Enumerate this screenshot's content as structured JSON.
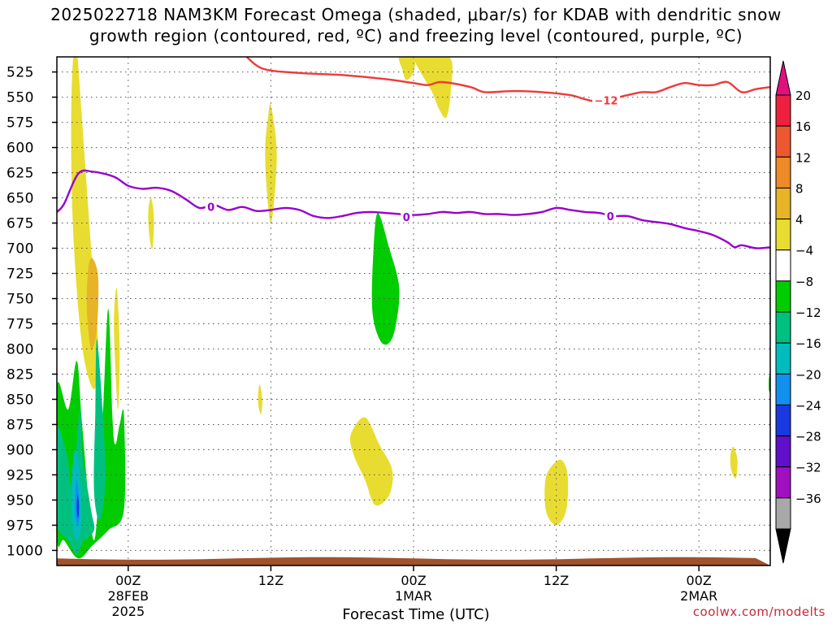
{
  "title_line1": "2025022718 NAM3KM Forecast Omega (shaded, μbar/s) for KDAB with dendritic snow",
  "title_line2": "growth region (contoured, red, ºC) and freezing level (contoured, purple, ºC)",
  "xlabel": "Forecast Time (UTC)",
  "credit": "coolwx.com/modelts",
  "chart_data": {
    "type": "time-height contour",
    "title": "2025022718 NAM3KM Forecast Omega (shaded, μbar/s) for KDAB with dendritic snow growth region (contoured, red, ºC) and freezing level (contoured, purple, ºC)",
    "xlabel": "Forecast Time (UTC)",
    "ylabel": "",
    "x_range_hours": [
      -5,
      45
    ],
    "y_range_hPa": [
      1015,
      510
    ],
    "y_ticks": [
      525,
      550,
      575,
      600,
      625,
      650,
      675,
      700,
      725,
      750,
      775,
      800,
      825,
      850,
      875,
      900,
      925,
      950,
      975,
      1000
    ],
    "x_ticks": [
      {
        "hour": 0,
        "lines": [
          "00Z",
          "28FEB",
          "2025"
        ]
      },
      {
        "hour": 10,
        "lines": [
          "12Z"
        ]
      },
      {
        "hour": 20,
        "lines": [
          "00Z",
          "1MAR"
        ]
      },
      {
        "hour": 30,
        "lines": [
          "12Z"
        ]
      },
      {
        "hour": 40,
        "lines": [
          "00Z",
          "2MAR"
        ]
      }
    ],
    "grid": true,
    "colorbar": {
      "labels": [
        "20",
        "16",
        "12",
        "8",
        "4",
        "−4",
        "−8",
        "−12",
        "−16",
        "−20",
        "−24",
        "−28",
        "−32",
        "−36"
      ],
      "colors": [
        "#ee2040",
        "#ee5830",
        "#ee8a28",
        "#e6b426",
        "#e8dc30",
        "#ffffff",
        "#00cc00",
        "#00c080",
        "#00bcbc",
        "#1290ee",
        "#1a38e0",
        "#6010c8",
        "#a010c0",
        "#a8a8a8"
      ],
      "top_arrow_color": "#e0117f",
      "bottom_arrow_color": "#000000"
    },
    "contours": [
      {
        "color": "#ee3a3a",
        "label": "−12",
        "label_at": [
          33.5,
          553
        ],
        "points": [
          [
            8.3,
            510
          ],
          [
            9.5,
            522
          ],
          [
            12,
            526
          ],
          [
            15,
            528
          ],
          [
            18,
            532
          ],
          [
            20,
            536
          ],
          [
            21,
            538
          ],
          [
            22,
            535
          ],
          [
            24,
            540
          ],
          [
            25,
            545
          ],
          [
            27,
            544
          ],
          [
            29,
            545
          ],
          [
            31,
            548
          ],
          [
            32,
            552
          ],
          [
            33,
            554
          ],
          [
            35,
            548
          ],
          [
            36,
            545
          ],
          [
            37,
            545
          ],
          [
            38,
            540
          ],
          [
            39,
            536
          ],
          [
            40,
            538
          ],
          [
            41,
            538
          ],
          [
            42,
            535
          ],
          [
            43,
            545
          ],
          [
            44,
            542
          ],
          [
            45,
            540
          ]
        ]
      },
      {
        "color": "#9900cc",
        "label": "0",
        "label_at": [
          5.8,
          659
        ],
        "label2_at": [
          19.5,
          669
        ],
        "label3_at": [
          33.8,
          668
        ],
        "points": [
          [
            -5,
            664
          ],
          [
            -4.5,
            656
          ],
          [
            -3.5,
            626
          ],
          [
            -2.5,
            624
          ],
          [
            -1,
            629
          ],
          [
            0,
            638
          ],
          [
            1,
            641
          ],
          [
            2,
            640
          ],
          [
            3,
            643
          ],
          [
            4,
            651
          ],
          [
            5,
            660
          ],
          [
            6,
            657
          ],
          [
            7,
            662
          ],
          [
            8,
            659
          ],
          [
            9,
            663
          ],
          [
            10,
            662
          ],
          [
            11,
            660
          ],
          [
            12,
            662
          ],
          [
            13,
            668
          ],
          [
            14,
            670
          ],
          [
            15,
            668
          ],
          [
            16,
            665
          ],
          [
            17,
            664
          ],
          [
            18,
            665
          ],
          [
            19,
            666
          ],
          [
            20,
            667
          ],
          [
            21,
            666
          ],
          [
            22,
            664
          ],
          [
            23,
            665
          ],
          [
            24,
            664
          ],
          [
            25,
            666
          ],
          [
            26,
            666
          ],
          [
            27,
            667
          ],
          [
            28,
            666
          ],
          [
            29,
            664
          ],
          [
            30,
            660
          ],
          [
            31,
            662
          ],
          [
            32,
            664
          ],
          [
            33,
            665
          ],
          [
            34,
            668
          ],
          [
            35,
            668
          ],
          [
            36,
            672
          ],
          [
            37,
            674
          ],
          [
            38,
            676
          ],
          [
            39,
            680
          ],
          [
            40,
            683
          ],
          [
            41,
            687
          ],
          [
            42,
            694
          ],
          [
            42.5,
            699
          ],
          [
            43,
            697
          ],
          [
            44,
            700
          ],
          [
            45,
            699
          ]
        ]
      }
    ],
    "shaded_regions": [
      {
        "level": "4 to 8",
        "color": "#e8dc30",
        "points": [
          [
            -3.6,
            505
          ],
          [
            -3.2,
            580
          ],
          [
            -2.6,
            700
          ],
          [
            -2.1,
            800
          ],
          [
            -2.4,
            840
          ],
          [
            -3.2,
            800
          ],
          [
            -3.8,
            700
          ],
          [
            -4,
            600
          ],
          [
            -3.9,
            520
          ]
        ]
      },
      {
        "level": "8 to 12",
        "color": "#e6b426",
        "points": [
          [
            -2.5,
            710
          ],
          [
            -2.1,
            730
          ],
          [
            -2.2,
            780
          ],
          [
            -2.6,
            800
          ],
          [
            -2.9,
            760
          ],
          [
            -2.8,
            720
          ]
        ]
      },
      {
        "level": "4 to 8",
        "color": "#e8dc30",
        "points": [
          [
            -0.8,
            740
          ],
          [
            -0.6,
            800
          ],
          [
            -0.7,
            860
          ],
          [
            -0.9,
            820
          ],
          [
            -1,
            770
          ]
        ]
      },
      {
        "level": "-8 to -4",
        "color": "#00cc00",
        "points": [
          [
            -5,
            838
          ],
          [
            -4.2,
            860
          ],
          [
            -3.6,
            812
          ],
          [
            -3.2,
            880
          ],
          [
            -2.4,
            990
          ],
          [
            -1.8,
            870
          ],
          [
            -1.4,
            760
          ],
          [
            -1.1,
            870
          ],
          [
            -0.9,
            895
          ],
          [
            -0.6,
            875
          ],
          [
            -0.3,
            865
          ],
          [
            -0.3,
            960
          ],
          [
            -1.4,
            980
          ],
          [
            -2.5,
            995
          ],
          [
            -3.5,
            1008
          ],
          [
            -4.5,
            990
          ],
          [
            -5,
            985
          ]
        ]
      },
      {
        "level": "-12 to -8",
        "color": "#00c080",
        "points": [
          [
            -5,
            880
          ],
          [
            -4.3,
            905
          ],
          [
            -3.9,
            940
          ],
          [
            -3.4,
            860
          ],
          [
            -3.2,
            905
          ],
          [
            -2.6,
            960
          ],
          [
            -2.4,
            980
          ],
          [
            -3.2,
            992
          ],
          [
            -3.6,
            1004
          ],
          [
            -4.2,
            990
          ],
          [
            -5,
            970
          ]
        ]
      },
      {
        "level": "-16 to -12",
        "color": "#00bcbc",
        "points": [
          [
            -3.7,
            900
          ],
          [
            -3.3,
            940
          ],
          [
            -3.3,
            975
          ],
          [
            -3.6,
            990
          ],
          [
            -3.9,
            975
          ],
          [
            -4.0,
            940
          ]
        ]
      },
      {
        "level": "-20 to -16",
        "color": "#1290ee",
        "points": [
          [
            -3.6,
            930
          ],
          [
            -3.4,
            955
          ],
          [
            -3.5,
            975
          ],
          [
            -3.7,
            965
          ],
          [
            -3.7,
            945
          ]
        ]
      },
      {
        "level": "-24 to -20",
        "color": "#1a38e0",
        "points": [
          [
            -3.55,
            945
          ],
          [
            -3.45,
            955
          ],
          [
            -3.5,
            968
          ],
          [
            -3.6,
            960
          ]
        ]
      },
      {
        "level": "-12 to -8",
        "color": "#00c080",
        "points": [
          [
            -2.2,
            790
          ],
          [
            -1.8,
            860
          ],
          [
            -1.6,
            930
          ],
          [
            -2.0,
            970
          ],
          [
            -2.4,
            940
          ],
          [
            -2.3,
            860
          ]
        ]
      },
      {
        "level": "4 to 8",
        "color": "#e8dc30",
        "points": [
          [
            1.6,
            650
          ],
          [
            1.8,
            670
          ],
          [
            1.7,
            700
          ],
          [
            1.5,
            690
          ],
          [
            1.4,
            665
          ]
        ]
      },
      {
        "level": "4 to 8",
        "color": "#e8dc30",
        "points": [
          [
            10,
            558
          ],
          [
            10.4,
            600
          ],
          [
            10.3,
            640
          ],
          [
            10.0,
            675
          ],
          [
            9.7,
            640
          ],
          [
            9.6,
            600
          ],
          [
            9.8,
            570
          ]
        ]
      },
      {
        "level": "4 to 8",
        "color": "#e8dc30",
        "points": [
          [
            19,
            510
          ],
          [
            20,
            512
          ],
          [
            20,
            525
          ],
          [
            19.5,
            533
          ],
          [
            19.2,
            522
          ]
        ]
      },
      {
        "level": "4 to 8",
        "color": "#e8dc30",
        "points": [
          [
            20,
            510
          ],
          [
            22.5,
            510
          ],
          [
            22.6,
            545
          ],
          [
            22.3,
            570
          ],
          [
            21.8,
            562
          ],
          [
            21.3,
            545
          ],
          [
            20.6,
            528
          ],
          [
            20.1,
            515
          ]
        ]
      },
      {
        "level": "-8 to -4",
        "color": "#00cc00",
        "points": [
          [
            17.5,
            665
          ],
          [
            18.3,
            700
          ],
          [
            19,
            740
          ],
          [
            18.7,
            780
          ],
          [
            18.2,
            795
          ],
          [
            17.6,
            790
          ],
          [
            17.1,
            760
          ],
          [
            17.2,
            700
          ]
        ]
      },
      {
        "level": "-8 to -4",
        "color": "#00cc00",
        "points": [
          [
            44.9,
            830
          ],
          [
            45,
            825
          ],
          [
            45,
            842
          ],
          [
            44.9,
            840
          ]
        ]
      },
      {
        "level": "4 to 8",
        "color": "#e8dc30",
        "points": [
          [
            9.2,
            835
          ],
          [
            9.4,
            850
          ],
          [
            9.3,
            865
          ],
          [
            9.1,
            852
          ]
        ]
      },
      {
        "level": "4 to 8",
        "color": "#e8dc30",
        "points": [
          [
            15.6,
            885
          ],
          [
            16.6,
            868
          ],
          [
            17.6,
            895
          ],
          [
            18.5,
            920
          ],
          [
            18.3,
            945
          ],
          [
            17.3,
            955
          ],
          [
            16.6,
            930
          ],
          [
            15.8,
            905
          ]
        ]
      },
      {
        "level": "4 to 8",
        "color": "#e8dc30",
        "points": [
          [
            29.5,
            920
          ],
          [
            30.3,
            910
          ],
          [
            30.8,
            925
          ],
          [
            30.7,
            960
          ],
          [
            30.0,
            975
          ],
          [
            29.3,
            962
          ],
          [
            29.2,
            935
          ]
        ]
      },
      {
        "level": "4 to 8",
        "color": "#e8dc30",
        "points": [
          [
            42.4,
            897
          ],
          [
            42.7,
            910
          ],
          [
            42.6,
            928
          ],
          [
            42.3,
            922
          ],
          [
            42.2,
            908
          ]
        ]
      }
    ],
    "ground": {
      "color": "#a0522d",
      "top_hPa": 1008
    }
  }
}
